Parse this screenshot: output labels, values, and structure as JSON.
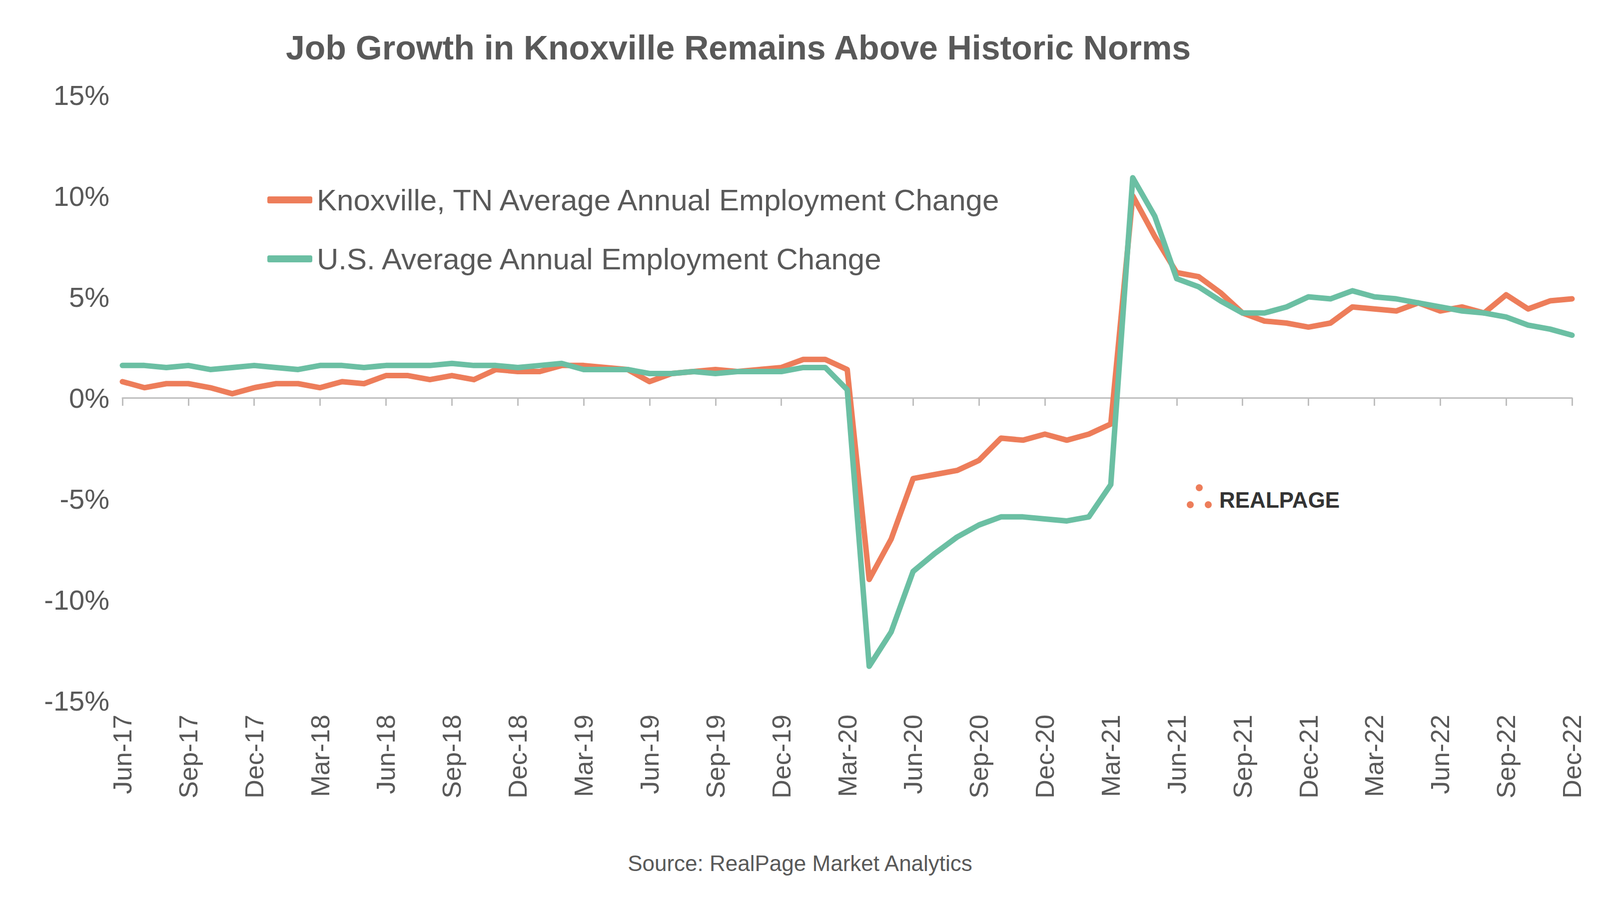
{
  "chart_data": {
    "type": "line",
    "title": "Job Growth in Knoxville Remains Above Historic Norms",
    "source": "Source: RealPage Market Analytics",
    "logo": "REALPAGE",
    "categories": [
      "Jun-17",
      null,
      null,
      "Sep-17",
      null,
      null,
      "Dec-17",
      null,
      null,
      "Mar-18",
      null,
      null,
      "Jun-18",
      null,
      null,
      "Sep-18",
      null,
      null,
      "Dec-18",
      null,
      null,
      "Mar-19",
      null,
      null,
      "Jun-19",
      null,
      null,
      "Sep-19",
      null,
      null,
      "Dec-19",
      null,
      null,
      "Mar-20",
      null,
      null,
      "Jun-20",
      null,
      null,
      "Sep-20",
      null,
      null,
      "Dec-20",
      null,
      null,
      "Mar-21",
      null,
      null,
      "Jun-21",
      null,
      null,
      "Sep-21",
      null,
      null,
      "Dec-21",
      null,
      null,
      "Mar-22",
      null,
      null,
      "Jun-22",
      null,
      null,
      "Sep-22",
      null,
      null,
      "Dec-22"
    ],
    "series": [
      {
        "name": "Knoxville, TN Average Annual Employment Change",
        "color": "#ED7D5A",
        "values": [
          0.8,
          0.5,
          0.7,
          0.7,
          0.5,
          0.2,
          0.5,
          0.7,
          0.7,
          0.5,
          0.8,
          0.7,
          1.1,
          1.1,
          0.9,
          1.1,
          0.9,
          1.4,
          1.3,
          1.3,
          1.6,
          1.6,
          1.5,
          1.4,
          0.8,
          1.2,
          1.3,
          1.4,
          1.3,
          1.4,
          1.5,
          1.9,
          1.9,
          1.4,
          -9.0,
          -7.0,
          -4.0,
          -3.8,
          -3.6,
          -3.1,
          -2.0,
          -2.1,
          -1.8,
          -2.1,
          -1.8,
          -1.3,
          10.0,
          8.0,
          6.2,
          6.0,
          5.2,
          4.2,
          3.8,
          3.7,
          3.5,
          3.7,
          4.5,
          4.4,
          4.3,
          4.7,
          4.3,
          4.5,
          4.2,
          5.1,
          4.4,
          4.8,
          4.9
        ]
      },
      {
        "name": "U.S. Average Annual Employment Change",
        "color": "#6BBFA3",
        "values": [
          1.6,
          1.6,
          1.5,
          1.6,
          1.4,
          1.5,
          1.6,
          1.5,
          1.4,
          1.6,
          1.6,
          1.5,
          1.6,
          1.6,
          1.6,
          1.7,
          1.6,
          1.6,
          1.5,
          1.6,
          1.7,
          1.4,
          1.4,
          1.4,
          1.2,
          1.2,
          1.3,
          1.2,
          1.3,
          1.3,
          1.3,
          1.5,
          1.5,
          0.4,
          -13.3,
          -11.6,
          -8.6,
          -7.7,
          -6.9,
          -6.3,
          -5.9,
          -5.9,
          -6.0,
          -6.1,
          -5.9,
          -4.3,
          10.9,
          9.0,
          5.9,
          5.5,
          4.8,
          4.2,
          4.2,
          4.5,
          5.0,
          4.9,
          5.3,
          5.0,
          4.9,
          4.7,
          4.5,
          4.3,
          4.2,
          4.0,
          3.6,
          3.4,
          3.1
        ]
      }
    ],
    "ylim": [
      -15,
      15
    ],
    "yticks": [
      {
        "value": -15,
        "label": "-15%"
      },
      {
        "value": -10,
        "label": "-10%"
      },
      {
        "value": -5,
        "label": "-5%"
      },
      {
        "value": 0,
        "label": "0%"
      },
      {
        "value": 5,
        "label": "5%"
      },
      {
        "value": 10,
        "label": "10%"
      },
      {
        "value": 15,
        "label": "15%"
      }
    ],
    "grid": false,
    "legend": "top-left",
    "marker": "none"
  }
}
